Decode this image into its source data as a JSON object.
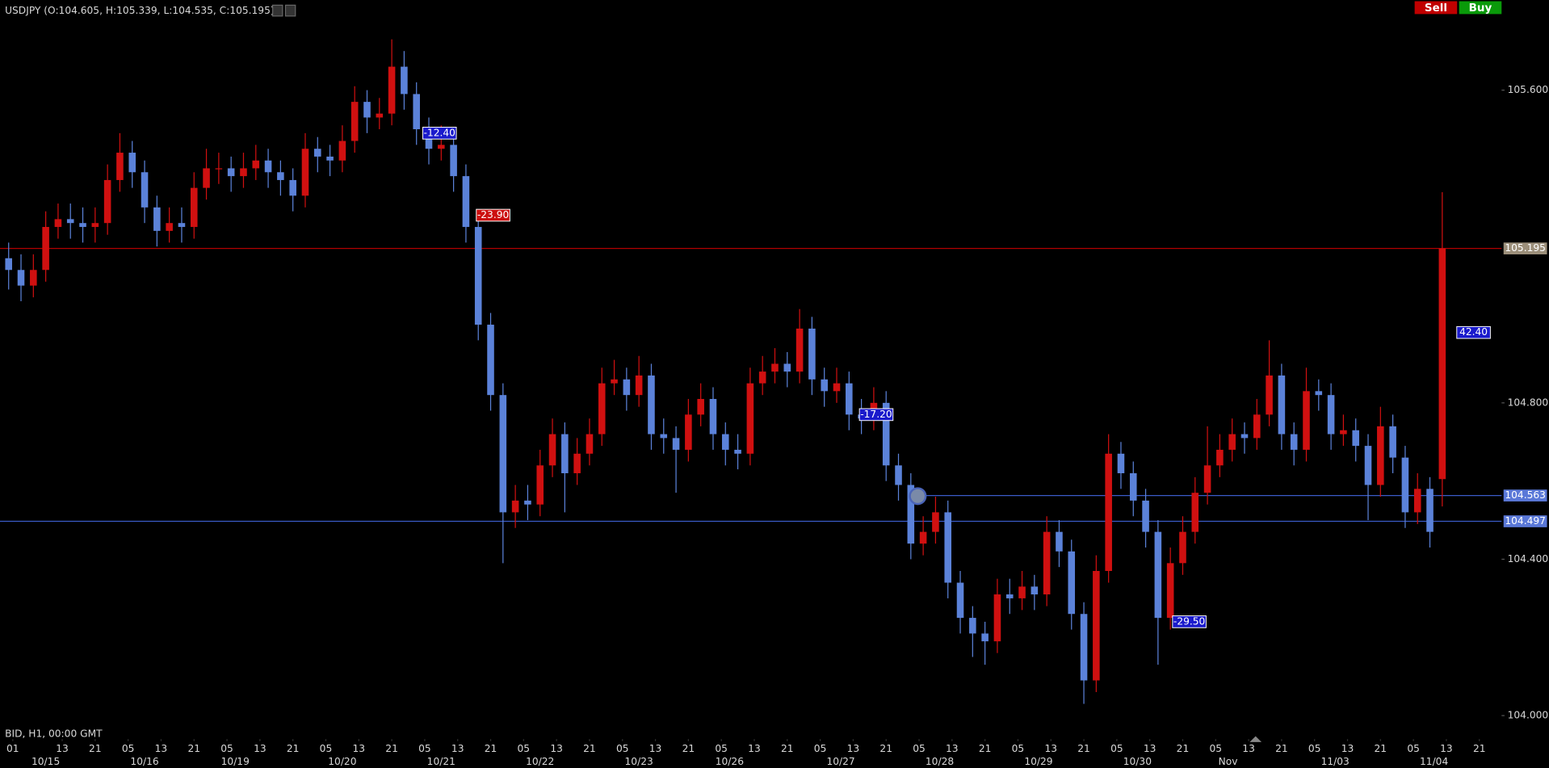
{
  "ui": {
    "symbol_info": "USDJPY (O:104.605, H:105.339, L:104.535, C:105.195)",
    "sell": "Sell",
    "buy": "Buy",
    "footer_info": "BID, H1, 00:00 GMT"
  },
  "chart_data": {
    "type": "candlestick",
    "up_color": "#d01010",
    "down_color": "#5b82d9",
    "xlim": [
      -2.1,
      362.4
    ],
    "ylim": [
      103.96,
      105.83
    ],
    "yticks": [
      {
        "value": 104.0,
        "label": "104.000"
      },
      {
        "value": 104.4,
        "label": "104.400"
      },
      {
        "value": 104.8,
        "label": "104.800"
      },
      {
        "value": 105.6,
        "label": "105.600"
      }
    ],
    "xticks": [
      {
        "value": 1,
        "label": "01"
      },
      {
        "value": 13,
        "label": "13"
      },
      {
        "value": 21,
        "label": "21"
      },
      {
        "value": 29,
        "label": "05"
      },
      {
        "value": 37,
        "label": "13"
      },
      {
        "value": 45,
        "label": "21"
      },
      {
        "value": 53,
        "label": "05"
      },
      {
        "value": 61,
        "label": "13"
      },
      {
        "value": 69,
        "label": "21"
      },
      {
        "value": 77,
        "label": "05"
      },
      {
        "value": 85,
        "label": "13"
      },
      {
        "value": 93,
        "label": "21"
      },
      {
        "value": 101,
        "label": "05"
      },
      {
        "value": 109,
        "label": "13"
      },
      {
        "value": 117,
        "label": "21"
      },
      {
        "value": 125,
        "label": "05"
      },
      {
        "value": 133,
        "label": "13"
      },
      {
        "value": 141,
        "label": "21"
      },
      {
        "value": 149,
        "label": "05"
      },
      {
        "value": 157,
        "label": "13"
      },
      {
        "value": 165,
        "label": "21"
      },
      {
        "value": 173,
        "label": "05"
      },
      {
        "value": 181,
        "label": "13"
      },
      {
        "value": 189,
        "label": "21"
      },
      {
        "value": 197,
        "label": "05"
      },
      {
        "value": 205,
        "label": "13"
      },
      {
        "value": 213,
        "label": "21"
      },
      {
        "value": 221,
        "label": "05"
      },
      {
        "value": 229,
        "label": "13"
      },
      {
        "value": 237,
        "label": "21"
      },
      {
        "value": 245,
        "label": "05"
      },
      {
        "value": 253,
        "label": "13"
      },
      {
        "value": 261,
        "label": "21"
      },
      {
        "value": 269,
        "label": "05"
      },
      {
        "value": 277,
        "label": "13"
      },
      {
        "value": 285,
        "label": "21"
      },
      {
        "value": 293,
        "label": "05"
      },
      {
        "value": 301,
        "label": "13"
      },
      {
        "value": 309,
        "label": "21"
      },
      {
        "value": 317,
        "label": "05"
      },
      {
        "value": 325,
        "label": "13"
      },
      {
        "value": 333,
        "label": "21"
      },
      {
        "value": 341,
        "label": "05"
      },
      {
        "value": 349,
        "label": "13"
      },
      {
        "value": 357,
        "label": "21"
      }
    ],
    "date_ticks": [
      {
        "value": 9,
        "label": "10/15"
      },
      {
        "value": 33,
        "label": "10/16"
      },
      {
        "value": 55,
        "label": "10/19"
      },
      {
        "value": 81,
        "label": "10/20"
      },
      {
        "value": 105,
        "label": "10/21"
      },
      {
        "value": 129,
        "label": "10/22"
      },
      {
        "value": 153,
        "label": "10/23"
      },
      {
        "value": 175,
        "label": "10/26"
      },
      {
        "value": 202,
        "label": "10/27"
      },
      {
        "value": 226,
        "label": "10/28"
      },
      {
        "value": 250,
        "label": "10/29"
      },
      {
        "value": 274,
        "label": "10/30"
      },
      {
        "value": 296,
        "label": "Nov"
      },
      {
        "value": 322,
        "label": "11/03"
      },
      {
        "value": 346,
        "label": "11/04"
      }
    ],
    "price_lines": [
      {
        "value": 105.195,
        "color": "#b00000",
        "label_bg": "#9c8f7a"
      },
      {
        "value": 104.563,
        "color": "#3a5bc7",
        "label_bg": "#5a78d8",
        "start_x": 221
      },
      {
        "value": 104.497,
        "color": "#3a5bc7",
        "label_bg": "#5a78d8"
      }
    ],
    "annotations": [
      {
        "text": "-12.40",
        "x": 101,
        "y": 105.49,
        "color": "#1a1acc"
      },
      {
        "text": "-23.90",
        "x": 114,
        "y": 105.28,
        "color": "#cc1010"
      },
      {
        "text": "-17.20",
        "x": 207,
        "y": 104.77,
        "color": "#1a1acc"
      },
      {
        "text": "-29.50",
        "x": 283,
        "y": 104.24,
        "color": "#1a1acc"
      },
      {
        "text": "42.40",
        "x": 352,
        "y": 104.98,
        "color": "#1a1acc"
      }
    ],
    "x": [
      0,
      3,
      6,
      9,
      12,
      15,
      18,
      21,
      24,
      27,
      30,
      33,
      36,
      39,
      42,
      45,
      48,
      51,
      54,
      57,
      60,
      63,
      66,
      69,
      72,
      75,
      78,
      81,
      84,
      87,
      90,
      93,
      96,
      99,
      102,
      105,
      108,
      111,
      114,
      117,
      120,
      123,
      126,
      129,
      132,
      135,
      138,
      141,
      144,
      147,
      150,
      153,
      156,
      159,
      162,
      165,
      168,
      171,
      174,
      177,
      180,
      183,
      186,
      189,
      192,
      195,
      198,
      201,
      204,
      207,
      210,
      213,
      216,
      219,
      222,
      225,
      228,
      231,
      234,
      237,
      240,
      243,
      246,
      249,
      252,
      255,
      258,
      261,
      264,
      267,
      270,
      273,
      276,
      279,
      282,
      285,
      288,
      291,
      294,
      297,
      300,
      303,
      306,
      309,
      312,
      315,
      318,
      321,
      324,
      327,
      330,
      333,
      336,
      339,
      342,
      345,
      348
    ],
    "ohlc": [
      [
        105.17,
        105.21,
        105.09,
        105.14
      ],
      [
        105.14,
        105.18,
        105.06,
        105.1
      ],
      [
        105.1,
        105.18,
        105.07,
        105.14
      ],
      [
        105.14,
        105.29,
        105.11,
        105.25
      ],
      [
        105.25,
        105.31,
        105.22,
        105.27
      ],
      [
        105.27,
        105.31,
        105.22,
        105.26
      ],
      [
        105.26,
        105.3,
        105.21,
        105.25
      ],
      [
        105.25,
        105.3,
        105.21,
        105.26
      ],
      [
        105.26,
        105.41,
        105.23,
        105.37
      ],
      [
        105.37,
        105.49,
        105.34,
        105.44
      ],
      [
        105.44,
        105.47,
        105.35,
        105.39
      ],
      [
        105.39,
        105.42,
        105.26,
        105.3
      ],
      [
        105.3,
        105.33,
        105.2,
        105.24
      ],
      [
        105.24,
        105.3,
        105.21,
        105.26
      ],
      [
        105.26,
        105.3,
        105.21,
        105.25
      ],
      [
        105.25,
        105.39,
        105.22,
        105.35
      ],
      [
        105.35,
        105.45,
        105.32,
        105.4
      ],
      [
        105.4,
        105.44,
        105.36,
        105.4
      ],
      [
        105.4,
        105.43,
        105.34,
        105.38
      ],
      [
        105.38,
        105.44,
        105.35,
        105.4
      ],
      [
        105.4,
        105.46,
        105.37,
        105.42
      ],
      [
        105.42,
        105.45,
        105.35,
        105.39
      ],
      [
        105.39,
        105.42,
        105.33,
        105.37
      ],
      [
        105.37,
        105.4,
        105.29,
        105.33
      ],
      [
        105.33,
        105.49,
        105.3,
        105.45
      ],
      [
        105.45,
        105.48,
        105.39,
        105.43
      ],
      [
        105.43,
        105.46,
        105.38,
        105.42
      ],
      [
        105.42,
        105.51,
        105.39,
        105.47
      ],
      [
        105.47,
        105.61,
        105.44,
        105.57
      ],
      [
        105.57,
        105.6,
        105.49,
        105.53
      ],
      [
        105.53,
        105.58,
        105.5,
        105.54
      ],
      [
        105.54,
        105.73,
        105.51,
        105.66
      ],
      [
        105.66,
        105.7,
        105.55,
        105.59
      ],
      [
        105.59,
        105.62,
        105.46,
        105.5
      ],
      [
        105.5,
        105.53,
        105.41,
        105.45
      ],
      [
        105.45,
        105.51,
        105.42,
        105.46
      ],
      [
        105.46,
        105.49,
        105.34,
        105.38
      ],
      [
        105.38,
        105.41,
        105.21,
        105.25
      ],
      [
        105.25,
        105.27,
        104.96,
        105.0
      ],
      [
        105.0,
        105.03,
        104.78,
        104.82
      ],
      [
        104.82,
        104.85,
        104.39,
        104.52
      ],
      [
        104.52,
        104.59,
        104.48,
        104.55
      ],
      [
        104.55,
        104.59,
        104.5,
        104.54
      ],
      [
        104.54,
        104.68,
        104.51,
        104.64
      ],
      [
        104.64,
        104.76,
        104.61,
        104.72
      ],
      [
        104.72,
        104.75,
        104.52,
        104.62
      ],
      [
        104.62,
        104.71,
        104.59,
        104.67
      ],
      [
        104.67,
        104.76,
        104.64,
        104.72
      ],
      [
        104.72,
        104.89,
        104.69,
        104.85
      ],
      [
        104.85,
        104.91,
        104.82,
        104.86
      ],
      [
        104.86,
        104.89,
        104.78,
        104.82
      ],
      [
        104.82,
        104.92,
        104.79,
        104.87
      ],
      [
        104.87,
        104.9,
        104.68,
        104.72
      ],
      [
        104.72,
        104.76,
        104.67,
        104.71
      ],
      [
        104.71,
        104.74,
        104.57,
        104.68
      ],
      [
        104.68,
        104.81,
        104.65,
        104.77
      ],
      [
        104.77,
        104.85,
        104.74,
        104.81
      ],
      [
        104.81,
        104.84,
        104.68,
        104.72
      ],
      [
        104.72,
        104.75,
        104.64,
        104.68
      ],
      [
        104.68,
        104.72,
        104.63,
        104.67
      ],
      [
        104.67,
        104.89,
        104.64,
        104.85
      ],
      [
        104.85,
        104.92,
        104.82,
        104.88
      ],
      [
        104.88,
        104.94,
        104.85,
        104.9
      ],
      [
        104.9,
        104.93,
        104.84,
        104.88
      ],
      [
        104.88,
        105.04,
        104.85,
        104.99
      ],
      [
        104.99,
        105.02,
        104.82,
        104.86
      ],
      [
        104.86,
        104.89,
        104.79,
        104.83
      ],
      [
        104.83,
        104.89,
        104.8,
        104.85
      ],
      [
        104.85,
        104.88,
        104.73,
        104.77
      ],
      [
        104.77,
        104.81,
        104.72,
        104.76
      ],
      [
        104.76,
        104.84,
        104.73,
        104.8
      ],
      [
        104.8,
        104.83,
        104.6,
        104.64
      ],
      [
        104.64,
        104.67,
        104.55,
        104.59
      ],
      [
        104.59,
        104.62,
        104.4,
        104.44
      ],
      [
        104.44,
        104.51,
        104.41,
        104.47
      ],
      [
        104.47,
        104.56,
        104.44,
        104.52
      ],
      [
        104.52,
        104.55,
        104.3,
        104.34
      ],
      [
        104.34,
        104.37,
        104.21,
        104.25
      ],
      [
        104.25,
        104.28,
        104.15,
        104.21
      ],
      [
        104.21,
        104.24,
        104.13,
        104.19
      ],
      [
        104.19,
        104.35,
        104.16,
        104.31
      ],
      [
        104.31,
        104.35,
        104.26,
        104.3
      ],
      [
        104.3,
        104.37,
        104.27,
        104.33
      ],
      [
        104.33,
        104.36,
        104.27,
        104.31
      ],
      [
        104.31,
        104.51,
        104.28,
        104.47
      ],
      [
        104.47,
        104.5,
        104.38,
        104.42
      ],
      [
        104.42,
        104.45,
        104.22,
        104.26
      ],
      [
        104.26,
        104.29,
        104.03,
        104.09
      ],
      [
        104.09,
        104.41,
        104.06,
        104.37
      ],
      [
        104.37,
        104.72,
        104.34,
        104.67
      ],
      [
        104.67,
        104.7,
        104.58,
        104.62
      ],
      [
        104.62,
        104.65,
        104.51,
        104.55
      ],
      [
        104.55,
        104.58,
        104.43,
        104.47
      ],
      [
        104.47,
        104.5,
        104.13,
        104.25
      ],
      [
        104.25,
        104.43,
        104.22,
        104.39
      ],
      [
        104.39,
        104.51,
        104.36,
        104.47
      ],
      [
        104.47,
        104.61,
        104.44,
        104.57
      ],
      [
        104.57,
        104.74,
        104.54,
        104.64
      ],
      [
        104.64,
        104.72,
        104.61,
        104.68
      ],
      [
        104.68,
        104.76,
        104.65,
        104.72
      ],
      [
        104.72,
        104.75,
        104.67,
        104.71
      ],
      [
        104.71,
        104.81,
        104.68,
        104.77
      ],
      [
        104.77,
        104.96,
        104.74,
        104.87
      ],
      [
        104.87,
        104.9,
        104.68,
        104.72
      ],
      [
        104.72,
        104.75,
        104.64,
        104.68
      ],
      [
        104.68,
        104.89,
        104.65,
        104.83
      ],
      [
        104.83,
        104.86,
        104.78,
        104.82
      ],
      [
        104.82,
        104.85,
        104.68,
        104.72
      ],
      [
        104.72,
        104.77,
        104.69,
        104.73
      ],
      [
        104.73,
        104.76,
        104.65,
        104.69
      ],
      [
        104.69,
        104.72,
        104.5,
        104.59
      ],
      [
        104.59,
        104.79,
        104.56,
        104.74
      ],
      [
        104.74,
        104.77,
        104.62,
        104.66
      ],
      [
        104.66,
        104.69,
        104.48,
        104.52
      ],
      [
        104.52,
        104.62,
        104.49,
        104.58
      ],
      [
        104.58,
        104.61,
        104.43,
        104.47
      ],
      [
        104.605,
        105.339,
        104.535,
        105.195
      ]
    ]
  }
}
